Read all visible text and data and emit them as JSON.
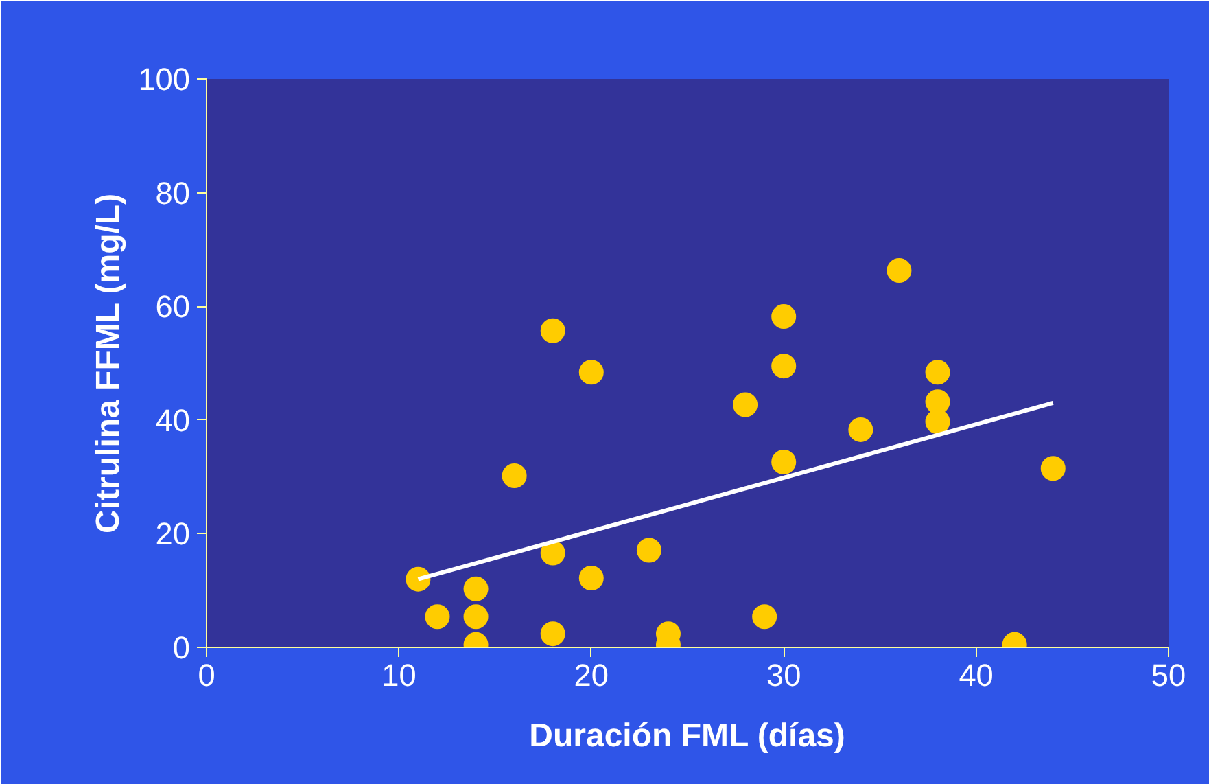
{
  "chart_data": {
    "type": "scatter",
    "xlabel": "Duración FML (días)",
    "ylabel": "Citrulina FFML (mg/L)",
    "xlim": [
      0,
      50
    ],
    "ylim": [
      0,
      100
    ],
    "xticks": [
      0,
      10,
      20,
      30,
      40,
      50
    ],
    "yticks": [
      0,
      20,
      40,
      60,
      80,
      100
    ],
    "grid": false,
    "series": [
      {
        "marker": "circle",
        "color": "#ffcc00",
        "x": [
          11,
          12,
          14,
          14,
          14,
          16,
          18,
          18,
          18,
          20,
          20,
          23,
          24,
          24,
          28,
          29,
          30,
          30,
          30,
          34,
          36,
          38,
          38,
          38,
          42,
          44
        ],
        "values": [
          12,
          5.4,
          10.3,
          5.4,
          0.5,
          30.2,
          55.7,
          16.6,
          2.4,
          48.4,
          12.2,
          17.1,
          2.4,
          0.5,
          42.7,
          5.4,
          58.2,
          49.5,
          32.6,
          38.3,
          66.3,
          48.4,
          43.2,
          39.7,
          0.5,
          31.5
        ]
      },
      {
        "type": "line",
        "color": "#ffffff",
        "x": [
          11,
          44
        ],
        "values": [
          12,
          43
        ]
      }
    ]
  }
}
